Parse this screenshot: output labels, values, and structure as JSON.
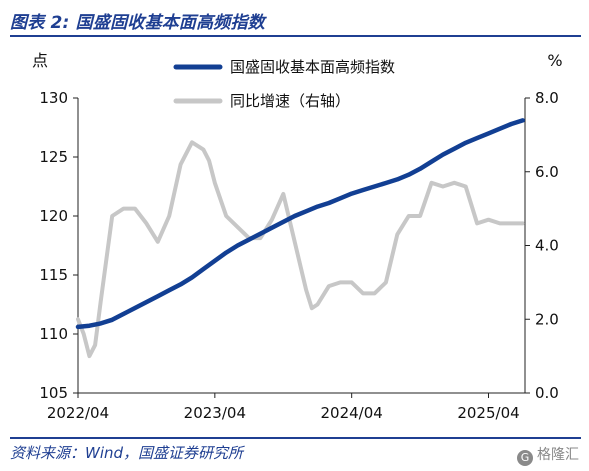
{
  "header": {
    "title": "图表 2:  国盛固收基本面高频指数"
  },
  "footer": {
    "source": "资料来源：Wind，国盛证券研究所",
    "watermark": "格隆汇",
    "watermark_icon": "watermark-logo-icon"
  },
  "colors": {
    "title": "#1f3f92",
    "series_primary": "#123f93",
    "series_secondary": "#c7c7c7",
    "axis": "#222222"
  },
  "chart_data": {
    "type": "line",
    "title": "",
    "xlabel": "",
    "ylabel": "点",
    "y2label": "%",
    "grid": false,
    "legend_position": "top-center",
    "x_ticks": [
      "2022/04",
      "2023/04",
      "2024/04",
      "2025/04"
    ],
    "x_tick_values": [
      0,
      12,
      24,
      36
    ],
    "ylim": [
      105,
      130
    ],
    "y_ticks": [
      105,
      110,
      115,
      120,
      125,
      130
    ],
    "y2lim": [
      0.0,
      8.0
    ],
    "y2_ticks": [
      "0.0",
      "2.0",
      "4.0",
      "6.0",
      "8.0"
    ],
    "series": [
      {
        "name": "国盛固收基本面高频指数",
        "axis": "left",
        "color": "#123f93",
        "x": [
          0,
          1,
          2,
          3,
          4,
          5,
          6,
          7,
          8,
          9,
          10,
          11,
          12,
          13,
          14,
          15,
          16,
          17,
          18,
          19,
          20,
          21,
          22,
          23,
          24,
          25,
          26,
          27,
          28,
          29,
          30,
          31,
          32,
          33,
          34,
          35,
          36,
          37,
          38,
          39
        ],
        "values": [
          110.6,
          110.7,
          110.9,
          111.2,
          111.7,
          112.2,
          112.7,
          113.2,
          113.7,
          114.2,
          114.8,
          115.5,
          116.2,
          116.9,
          117.5,
          118.0,
          118.5,
          119.0,
          119.5,
          120.0,
          120.4,
          120.8,
          121.1,
          121.5,
          121.9,
          122.2,
          122.5,
          122.8,
          123.1,
          123.5,
          124.0,
          124.6,
          125.2,
          125.7,
          126.2,
          126.6,
          127.0,
          127.4,
          127.8,
          128.1
        ]
      },
      {
        "name": "同比增速（右轴）",
        "axis": "right",
        "color": "#c7c7c7",
        "x": [
          0,
          0.5,
          1,
          1.5,
          2,
          3,
          4,
          5,
          6,
          7,
          8,
          9,
          10,
          10.5,
          11,
          11.5,
          12,
          13,
          14,
          15,
          16,
          17,
          18,
          19,
          20,
          20.5,
          21,
          22,
          23,
          24,
          25,
          26,
          27,
          28,
          29,
          30,
          31,
          32,
          33,
          34,
          35,
          36,
          37,
          38,
          39
        ],
        "values": [
          2.0,
          1.6,
          1.0,
          1.3,
          2.5,
          4.8,
          5.0,
          5.0,
          4.6,
          4.1,
          4.8,
          6.2,
          6.8,
          6.7,
          6.6,
          6.3,
          5.7,
          4.8,
          4.5,
          4.2,
          4.2,
          4.7,
          5.4,
          4.1,
          2.8,
          2.3,
          2.4,
          2.9,
          3.0,
          3.0,
          2.7,
          2.7,
          3.0,
          4.3,
          4.8,
          4.8,
          5.7,
          5.6,
          5.7,
          5.6,
          4.6,
          4.7,
          4.6,
          4.6,
          4.6
        ]
      }
    ]
  }
}
